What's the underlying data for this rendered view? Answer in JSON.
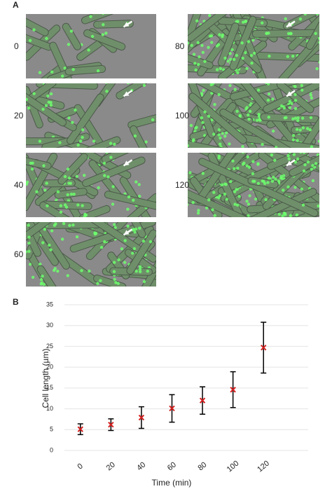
{
  "panel_a": {
    "label": "A",
    "images": [
      {
        "label": "0"
      },
      {
        "label": "20"
      },
      {
        "label": "40"
      },
      {
        "label": "60"
      },
      {
        "label": "80"
      },
      {
        "label": "100"
      },
      {
        "label": "120"
      }
    ]
  },
  "panel_b": {
    "label": "B"
  },
  "chart_data": {
    "type": "errorbar-scatter",
    "x_label": "Time (min)",
    "y_label": "Cell length (µm)",
    "categories": [
      "0",
      "20",
      "40",
      "60",
      "80",
      "100",
      "120"
    ],
    "values": [
      5.1,
      6.2,
      7.9,
      10.1,
      12.0,
      14.6,
      24.7
    ],
    "errors": [
      1.3,
      1.4,
      2.6,
      3.3,
      3.3,
      4.3,
      6.1
    ],
    "color": "#d42020",
    "error_color": "#000000",
    "ylim": [
      0,
      35
    ],
    "yticks": [
      0,
      5,
      10,
      15,
      20,
      25,
      30,
      35
    ],
    "grid": true
  }
}
